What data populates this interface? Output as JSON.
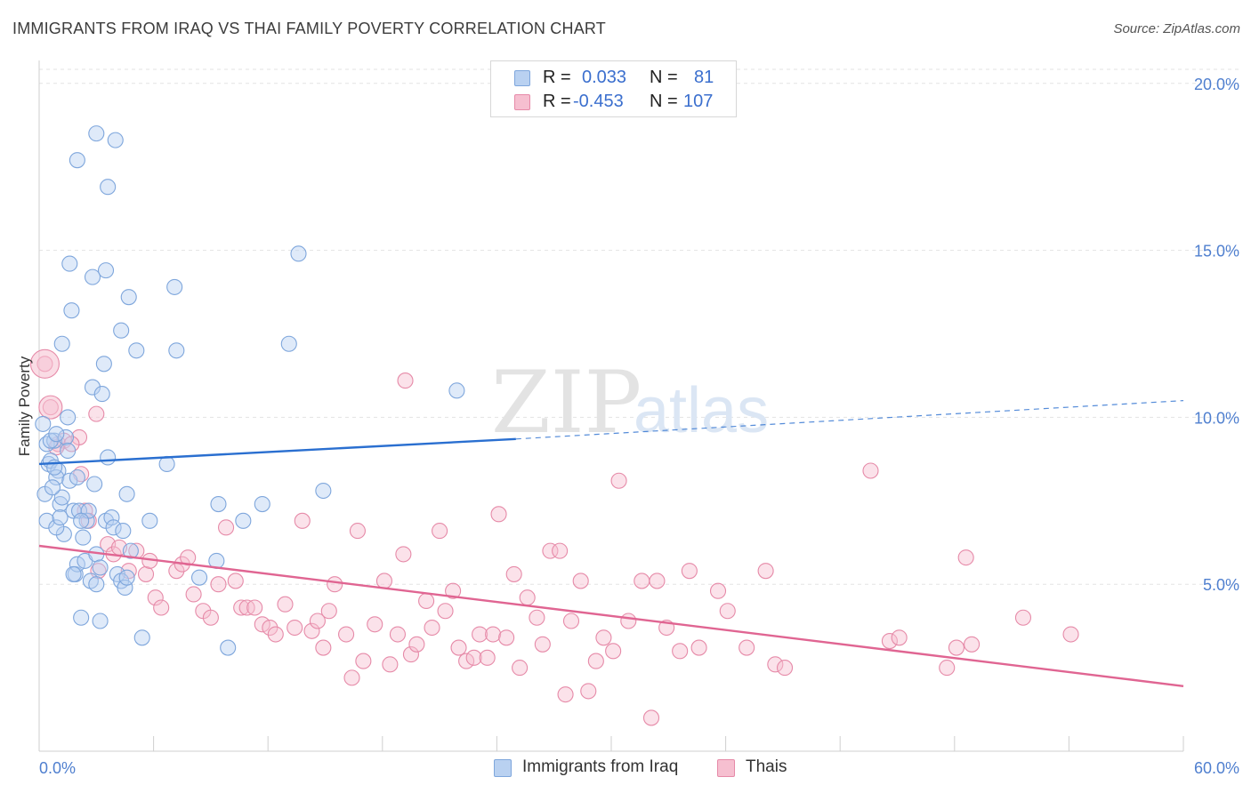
{
  "header": {
    "title": "IMMIGRANTS FROM IRAQ VS THAI FAMILY POVERTY CORRELATION CHART",
    "source": "Source: ZipAtlas.com"
  },
  "watermark": {
    "zip": "ZIP",
    "atlas": "atlas"
  },
  "legend": {
    "rows": [
      {
        "r_label": "R =",
        "r_value": "0.033",
        "n_label": "N =",
        "n_value": "81"
      },
      {
        "r_label": "R =",
        "r_value": "-0.453",
        "n_label": "N =",
        "n_value": "107"
      }
    ]
  },
  "bottom_legend": {
    "items": [
      "Immigrants from Iraq",
      "Thais"
    ]
  },
  "chart_data": {
    "type": "scatter",
    "title": "IMMIGRANTS FROM IRAQ VS THAI FAMILY POVERTY CORRELATION CHART",
    "xlabel": "",
    "ylabel": "Family Poverty",
    "xlim": [
      0,
      60
    ],
    "ylim": [
      0,
      20.5
    ],
    "x_tick_labels": [
      "0.0%",
      "60.0%"
    ],
    "y_ticks": [
      5,
      10,
      15,
      20
    ],
    "y_tick_labels": [
      "5.0%",
      "10.0%",
      "15.0%",
      "20.0%"
    ],
    "grid": true,
    "legend_position": "top-center",
    "colors": {
      "iraq_fill": "#b9d1f1",
      "iraq_edge": "#7ea6dc",
      "iraq_line": "#2a6fd0",
      "thai_fill": "#f6bfd0",
      "thai_edge": "#e68aa8",
      "thai_line": "#e06592"
    },
    "series": [
      {
        "name": "Immigrants from Iraq",
        "r": 0.033,
        "n": 81,
        "trend": {
          "x0": 0,
          "y0": 8.6,
          "x1": 25,
          "y1": 9.35,
          "dash_x1": 60,
          "dash_y1": 10.5
        },
        "points": [
          [
            0.2,
            9.8
          ],
          [
            0.4,
            9.2
          ],
          [
            0.5,
            8.6
          ],
          [
            0.6,
            8.7
          ],
          [
            0.3,
            7.7
          ],
          [
            0.4,
            6.9
          ],
          [
            0.8,
            9.3
          ],
          [
            1.0,
            8.4
          ],
          [
            0.9,
            8.2
          ],
          [
            1.1,
            7.4
          ],
          [
            1.2,
            7.6
          ],
          [
            0.7,
            7.9
          ],
          [
            1.3,
            6.5
          ],
          [
            0.9,
            6.7
          ],
          [
            1.4,
            9.4
          ],
          [
            1.5,
            10.0
          ],
          [
            1.6,
            8.1
          ],
          [
            1.8,
            7.2
          ],
          [
            2.0,
            8.2
          ],
          [
            2.1,
            7.2
          ],
          [
            2.3,
            6.4
          ],
          [
            2.5,
            6.9
          ],
          [
            2.6,
            7.2
          ],
          [
            1.9,
            5.3
          ],
          [
            2.0,
            5.6
          ],
          [
            2.4,
            5.7
          ],
          [
            2.7,
            5.1
          ],
          [
            3.0,
            5.9
          ],
          [
            3.2,
            5.5
          ],
          [
            3.5,
            6.9
          ],
          [
            3.8,
            7.0
          ],
          [
            3.9,
            6.7
          ],
          [
            4.1,
            5.3
          ],
          [
            4.3,
            5.1
          ],
          [
            4.4,
            6.6
          ],
          [
            4.5,
            4.9
          ],
          [
            4.8,
            6.0
          ],
          [
            4.6,
            7.7
          ],
          [
            2.9,
            8.0
          ],
          [
            3.6,
            8.8
          ],
          [
            2.8,
            10.9
          ],
          [
            3.3,
            10.7
          ],
          [
            3.4,
            11.6
          ],
          [
            1.2,
            12.2
          ],
          [
            1.7,
            13.2
          ],
          [
            3.5,
            14.4
          ],
          [
            4.7,
            13.6
          ],
          [
            4.3,
            12.6
          ],
          [
            5.1,
            12.0
          ],
          [
            7.2,
            12.0
          ],
          [
            7.1,
            13.9
          ],
          [
            2.8,
            14.2
          ],
          [
            1.6,
            14.6
          ],
          [
            3.0,
            18.5
          ],
          [
            4.0,
            18.3
          ],
          [
            2.0,
            17.7
          ],
          [
            3.6,
            16.9
          ],
          [
            6.7,
            8.6
          ],
          [
            5.8,
            6.9
          ],
          [
            9.4,
            7.4
          ],
          [
            9.3,
            5.7
          ],
          [
            8.4,
            5.2
          ],
          [
            10.7,
            6.9
          ],
          [
            11.7,
            7.4
          ],
          [
            13.1,
            12.2
          ],
          [
            13.6,
            14.9
          ],
          [
            14.9,
            7.8
          ],
          [
            21.9,
            10.8
          ],
          [
            5.4,
            3.4
          ],
          [
            9.9,
            3.1
          ],
          [
            3.2,
            3.9
          ],
          [
            2.2,
            4.0
          ],
          [
            3.0,
            5.0
          ],
          [
            4.6,
            5.2
          ],
          [
            1.1,
            7.0
          ],
          [
            0.6,
            9.3
          ],
          [
            0.8,
            8.5
          ],
          [
            2.2,
            6.9
          ],
          [
            1.8,
            5.3
          ],
          [
            0.9,
            9.5
          ],
          [
            1.5,
            9.0
          ]
        ]
      },
      {
        "name": "Thais",
        "r": -0.453,
        "n": 107,
        "trend": {
          "x0": 0,
          "y0": 6.15,
          "x1": 60,
          "y1": 1.95
        },
        "points": [
          [
            0.3,
            11.6
          ],
          [
            0.6,
            10.3
          ],
          [
            1.0,
            9.2
          ],
          [
            1.3,
            9.3
          ],
          [
            2.2,
            8.3
          ],
          [
            2.4,
            7.2
          ],
          [
            2.6,
            6.9
          ],
          [
            3.0,
            10.1
          ],
          [
            3.6,
            6.2
          ],
          [
            3.9,
            5.9
          ],
          [
            4.2,
            6.1
          ],
          [
            4.7,
            5.4
          ],
          [
            5.1,
            6.0
          ],
          [
            5.6,
            5.3
          ],
          [
            5.8,
            5.7
          ],
          [
            6.1,
            4.6
          ],
          [
            6.4,
            4.3
          ],
          [
            7.2,
            5.4
          ],
          [
            7.5,
            5.6
          ],
          [
            7.8,
            5.8
          ],
          [
            8.1,
            4.7
          ],
          [
            8.6,
            4.2
          ],
          [
            9.0,
            4.0
          ],
          [
            9.4,
            5.0
          ],
          [
            9.8,
            6.7
          ],
          [
            10.3,
            5.1
          ],
          [
            10.6,
            4.3
          ],
          [
            10.9,
            4.3
          ],
          [
            11.3,
            4.3
          ],
          [
            11.7,
            3.8
          ],
          [
            12.1,
            3.7
          ],
          [
            12.4,
            3.5
          ],
          [
            12.9,
            4.4
          ],
          [
            13.4,
            3.7
          ],
          [
            13.8,
            6.9
          ],
          [
            14.3,
            3.6
          ],
          [
            14.6,
            3.9
          ],
          [
            14.9,
            3.1
          ],
          [
            15.2,
            4.2
          ],
          [
            15.5,
            5.0
          ],
          [
            16.1,
            3.5
          ],
          [
            16.4,
            2.2
          ],
          [
            16.7,
            6.6
          ],
          [
            17.0,
            2.7
          ],
          [
            17.6,
            3.8
          ],
          [
            18.1,
            5.1
          ],
          [
            18.4,
            2.6
          ],
          [
            18.8,
            3.5
          ],
          [
            19.1,
            5.9
          ],
          [
            19.5,
            2.9
          ],
          [
            19.8,
            3.2
          ],
          [
            20.3,
            4.5
          ],
          [
            20.6,
            3.7
          ],
          [
            21.0,
            6.6
          ],
          [
            21.3,
            4.2
          ],
          [
            21.7,
            4.8
          ],
          [
            22.0,
            3.1
          ],
          [
            22.4,
            2.7
          ],
          [
            22.8,
            2.8
          ],
          [
            23.1,
            3.5
          ],
          [
            23.5,
            2.8
          ],
          [
            23.8,
            3.5
          ],
          [
            24.1,
            7.1
          ],
          [
            24.5,
            3.4
          ],
          [
            24.9,
            5.3
          ],
          [
            25.2,
            2.5
          ],
          [
            25.6,
            4.6
          ],
          [
            26.1,
            4.0
          ],
          [
            26.4,
            3.2
          ],
          [
            26.8,
            6.0
          ],
          [
            27.3,
            6.0
          ],
          [
            27.6,
            1.7
          ],
          [
            27.9,
            3.9
          ],
          [
            28.4,
            5.1
          ],
          [
            28.8,
            1.8
          ],
          [
            29.2,
            2.7
          ],
          [
            29.6,
            3.4
          ],
          [
            30.1,
            3.0
          ],
          [
            30.4,
            8.1
          ],
          [
            30.9,
            3.9
          ],
          [
            31.6,
            5.1
          ],
          [
            32.1,
            1.0
          ],
          [
            32.4,
            5.1
          ],
          [
            32.9,
            3.7
          ],
          [
            33.6,
            3.0
          ],
          [
            34.1,
            5.4
          ],
          [
            34.6,
            3.1
          ],
          [
            35.6,
            4.8
          ],
          [
            36.1,
            4.2
          ],
          [
            37.1,
            3.1
          ],
          [
            38.1,
            5.4
          ],
          [
            38.6,
            2.6
          ],
          [
            39.1,
            2.5
          ],
          [
            48.6,
            5.8
          ],
          [
            51.6,
            4.0
          ],
          [
            54.1,
            3.5
          ],
          [
            43.6,
            8.4
          ],
          [
            44.6,
            3.3
          ],
          [
            45.1,
            3.4
          ],
          [
            47.6,
            2.5
          ],
          [
            48.1,
            3.1
          ],
          [
            48.9,
            3.2
          ],
          [
            19.2,
            11.1
          ],
          [
            2.1,
            9.4
          ],
          [
            3.1,
            5.4
          ],
          [
            0.9,
            9.1
          ],
          [
            1.7,
            9.2
          ]
        ]
      }
    ]
  }
}
